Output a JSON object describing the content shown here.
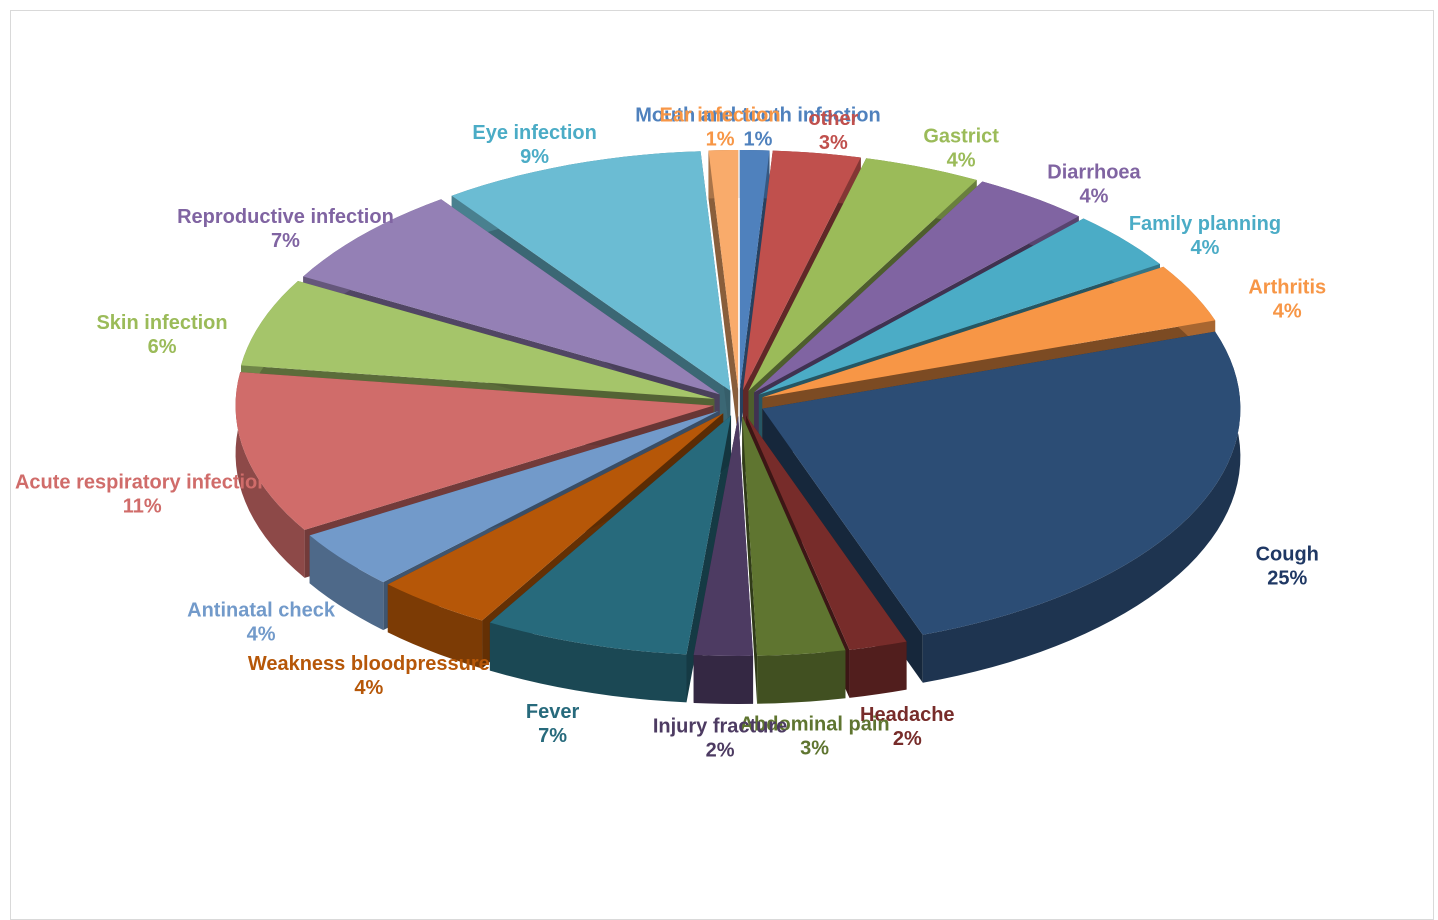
{
  "chart_data": {
    "type": "pie",
    "style": "3d exploded",
    "title": "",
    "slices": [
      {
        "label": "Mouth and tooth infection",
        "value": 1,
        "value_label": "1%",
        "color": "#4f81bd"
      },
      {
        "label": "other",
        "value": 3,
        "value_label": "3%",
        "color": "#c0504d"
      },
      {
        "label": "Gastrict",
        "value": 4,
        "value_label": "4%",
        "color": "#9bbb59"
      },
      {
        "label": "Diarrhoea",
        "value": 4,
        "value_label": "4%",
        "color": "#8064a2"
      },
      {
        "label": "Family planning",
        "value": 4,
        "value_label": "4%",
        "color": "#4bacc6"
      },
      {
        "label": "Arthritis",
        "value": 4,
        "value_label": "4%",
        "color": "#f79646"
      },
      {
        "label": "Cough",
        "value": 25,
        "value_label": "25%",
        "color": "#2c4d75"
      },
      {
        "label": "Headache",
        "value": 2,
        "value_label": "2%",
        "color": "#772c2a"
      },
      {
        "label": "Abdominal pain",
        "value": 3,
        "value_label": "3%",
        "color": "#5f7530"
      },
      {
        "label": "Injury fracture",
        "value": 2,
        "value_label": "2%",
        "color": "#4d3b62"
      },
      {
        "label": "Fever",
        "value": 7,
        "value_label": "7%",
        "color": "#276a7c"
      },
      {
        "label": "Weakness bloodpressure",
        "value": 4,
        "value_label": "4%",
        "color": "#b65708"
      },
      {
        "label": "Antinatal check",
        "value": 4,
        "value_label": "4%",
        "color": "#729aca"
      },
      {
        "label": "Acute respiratory infection",
        "value": 11,
        "value_label": "11%",
        "color": "#d06c6a"
      },
      {
        "label": "Skin infection",
        "value": 6,
        "value_label": "6%",
        "color": "#a5c56a"
      },
      {
        "label": "Reproductive infection",
        "value": 7,
        "value_label": "7%",
        "color": "#9480b5"
      },
      {
        "label": "Eye infection",
        "value": 9,
        "value_label": "9%",
        "color": "#6bbcd3"
      },
      {
        "label": "Ear infection",
        "value": 1,
        "value_label": "1%",
        "color": "#f9ab6b"
      }
    ],
    "label_colors": {
      "Mouth and tooth infection": "#4f81bd",
      "other": "#c0504d",
      "Gastrict": "#9bbb59",
      "Diarrhoea": "#8064a2",
      "Family planning": "#4bacc6",
      "Arthritis": "#f79646",
      "Cough": "#1f3864",
      "Headache": "#772c2a",
      "Abdominal pain": "#5f7530",
      "Injury fracture": "#4d3b62",
      "Fever": "#276a7c",
      "Weakness bloodpressure": "#b65708",
      "Antinatal check": "#729aca",
      "Acute respiratory infection": "#d06c6a",
      "Skin infection": "#9bbb59",
      "Reproductive infection": "#8064a2",
      "Eye infection": "#4bacc6",
      "Ear infection": "#f79646"
    },
    "legend": "none"
  }
}
